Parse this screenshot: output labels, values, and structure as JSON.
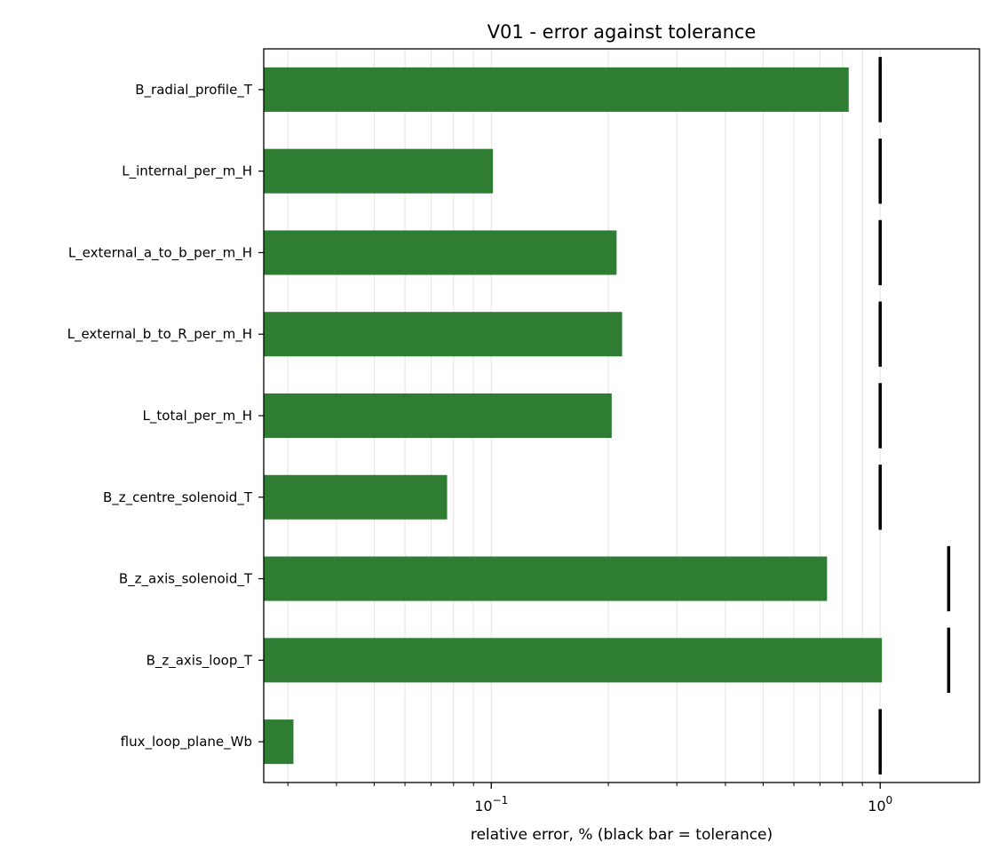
{
  "chart_data": {
    "type": "bar",
    "orientation": "horizontal",
    "title": "V01 - error against tolerance",
    "xlabel": "relative error, % (black bar = tolerance)",
    "ylabel": "",
    "xscale": "log",
    "xlim": [
      0.026,
      1.8
    ],
    "grid": "x",
    "bar_color": "#2e7d32",
    "tolerance_color": "#000000",
    "x_ticks": [
      {
        "value": 0.1,
        "base": "10",
        "exp": "−1"
      },
      {
        "value": 1,
        "base": "10",
        "exp": "0"
      }
    ],
    "categories": [
      "B_radial_profile_T",
      "L_internal_per_m_H",
      "L_external_a_to_b_per_m_H",
      "L_external_b_to_R_per_m_H",
      "L_total_per_m_H",
      "B_z_centre_solenoid_T",
      "B_z_axis_solenoid_T",
      "B_z_axis_loop_T",
      "flux_loop_plane_Wb"
    ],
    "series": [
      {
        "name": "error",
        "values": [
          0.83,
          0.101,
          0.21,
          0.217,
          0.204,
          0.077,
          0.73,
          1.01,
          0.031
        ]
      },
      {
        "name": "tolerance",
        "values": [
          1.0,
          1.0,
          1.0,
          1.0,
          1.0,
          1.0,
          1.5,
          1.5,
          1.0
        ]
      }
    ]
  }
}
